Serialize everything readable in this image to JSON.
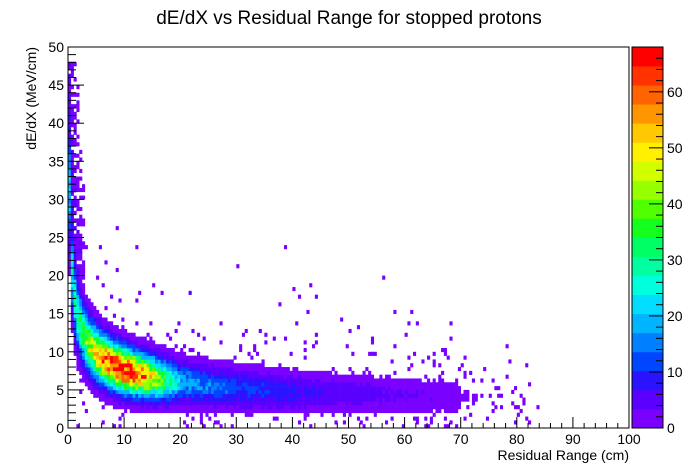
{
  "chart_data": {
    "type": "heatmap",
    "title": "dE/dX vs Residual Range for stopped protons",
    "xlabel": "Residual Range (cm)",
    "ylabel": "dE/dX (MeV/cm)",
    "xlim": [
      0,
      100
    ],
    "ylim": [
      0,
      50
    ],
    "x_ticks": [
      0,
      10,
      20,
      30,
      40,
      50,
      60,
      70,
      80,
      90,
      100
    ],
    "y_ticks": [
      0,
      5,
      10,
      15,
      20,
      25,
      30,
      35,
      40,
      45,
      50
    ],
    "colorbar": {
      "min": 0,
      "max": 68,
      "ticks": [
        0,
        10,
        20,
        30,
        40,
        50,
        60
      ],
      "colors": [
        "#7a00ff",
        "#5a00ff",
        "#2a14ff",
        "#0046ff",
        "#0080ff",
        "#00b4ff",
        "#00ddff",
        "#00ffdc",
        "#00ffa0",
        "#00ff64",
        "#14ff1e",
        "#50ff00",
        "#96ff00",
        "#d2ff00",
        "#fff000",
        "#ffc800",
        "#ff9600",
        "#ff6400",
        "#ff3200",
        "#ff0000"
      ]
    },
    "bin_width": {
      "x": 0.5,
      "y": 0.5
    },
    "band": {
      "description_of_distribution": "Bragg-curve band of stopped protons",
      "curve": "dEdx = 17*R^-0.42 + 1.2",
      "peak_density_at": {
        "x": 10,
        "y": 8.5
      },
      "max_x_extent": 84
    },
    "grid": false,
    "legend": "colorbar-right"
  }
}
